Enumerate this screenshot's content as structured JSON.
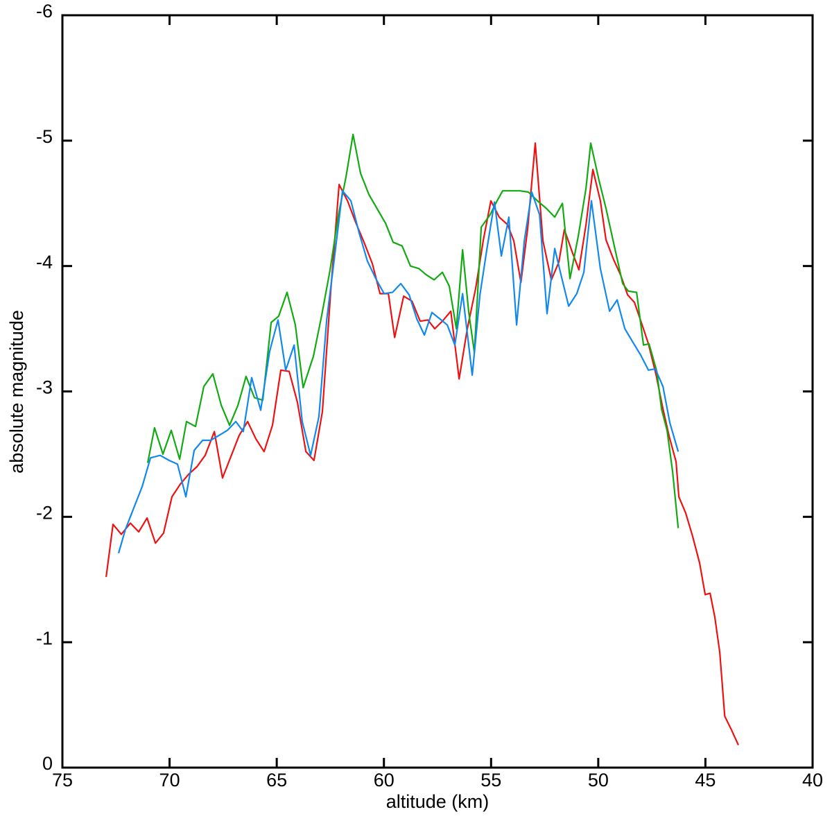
{
  "chart_data": {
    "type": "line",
    "xlabel": "altitude (km)",
    "ylabel": "absolute magnitude",
    "xlim": [
      75,
      40
    ],
    "ylim": [
      0,
      -6
    ],
    "xticks": [
      75,
      70,
      65,
      60,
      55,
      50,
      45,
      40
    ],
    "yticks": [
      0,
      -1,
      -2,
      -3,
      -4,
      -5,
      -6
    ],
    "series": [
      {
        "color": "#ee1111",
        "x": [
          72.96,
          72.64,
          72.25,
          71.83,
          71.44,
          71.05,
          70.66,
          70.28,
          69.89,
          69.5,
          69.11,
          68.72,
          68.34,
          67.91,
          67.53,
          67.14,
          66.75,
          66.36,
          65.97,
          65.59,
          65.2,
          64.81,
          64.42,
          64.03,
          63.64,
          63.26,
          62.87,
          62.48,
          62.09,
          61.7,
          61.32,
          60.93,
          60.54,
          60.18,
          59.79,
          59.5,
          59.08,
          58.69,
          58.31,
          57.95,
          57.63,
          57.27,
          56.88,
          56.49,
          56.11,
          55.72,
          55.36,
          55.01,
          54.62,
          54.23,
          53.94,
          53.61,
          53.29,
          52.94,
          52.58,
          52.19,
          51.84,
          51.58,
          51.19,
          50.9,
          50.57,
          50.25,
          49.9,
          49.64,
          49.28,
          48.96,
          48.63,
          48.31,
          47.95,
          47.66,
          47.31,
          46.98,
          46.69,
          46.37,
          46.24,
          45.92,
          45.59,
          45.27,
          45.01,
          44.78,
          44.56,
          44.33,
          44.1,
          43.78,
          43.46
        ],
        "values": [
          -1.52,
          -1.94,
          -1.86,
          -1.95,
          -1.88,
          -1.99,
          -1.79,
          -1.87,
          -2.16,
          -2.26,
          -2.34,
          -2.4,
          -2.49,
          -2.68,
          -2.31,
          -2.48,
          -2.65,
          -2.76,
          -2.62,
          -2.52,
          -2.73,
          -3.17,
          -3.16,
          -2.91,
          -2.52,
          -2.45,
          -2.84,
          -3.8,
          -4.65,
          -4.52,
          -4.35,
          -4.19,
          -4.02,
          -3.78,
          -3.78,
          -3.43,
          -3.76,
          -3.72,
          -3.56,
          -3.57,
          -3.5,
          -3.56,
          -3.64,
          -3.1,
          -3.5,
          -3.82,
          -4.21,
          -4.52,
          -4.39,
          -4.33,
          -4.2,
          -3.87,
          -4.3,
          -4.98,
          -4.2,
          -3.89,
          -4.03,
          -4.29,
          -4.1,
          -3.97,
          -4.33,
          -4.77,
          -4.52,
          -4.21,
          -4.05,
          -3.93,
          -3.77,
          -3.71,
          -3.53,
          -3.38,
          -3.14,
          -2.86,
          -2.64,
          -2.44,
          -2.16,
          -2.03,
          -1.84,
          -1.63,
          -1.38,
          -1.39,
          -1.2,
          -0.92,
          -0.41,
          -0.3,
          -0.18
        ]
      },
      {
        "color": "#11aa11",
        "x": [
          71.02,
          70.7,
          70.31,
          69.92,
          69.53,
          69.21,
          68.79,
          68.4,
          67.98,
          67.59,
          67.2,
          66.81,
          66.43,
          66.04,
          65.65,
          65.26,
          64.91,
          64.52,
          64.13,
          63.77,
          63.29,
          62.9,
          62.51,
          62.12,
          61.77,
          61.44,
          61.09,
          60.7,
          59.92,
          59.57,
          59.15,
          58.76,
          58.37,
          58.02,
          57.66,
          57.27,
          56.95,
          56.62,
          56.33,
          56.04,
          55.78,
          55.46,
          55.04,
          54.75,
          54.46,
          53.65,
          53.26,
          52.84,
          52.42,
          52.03,
          51.67,
          51.32,
          50.93,
          50.57,
          50.35,
          49.96,
          49.64,
          49.25,
          48.86,
          48.6,
          48.21,
          47.89,
          47.63,
          47.27,
          47.05,
          46.79,
          46.53,
          46.27
        ],
        "values": [
          -2.43,
          -2.71,
          -2.5,
          -2.69,
          -2.46,
          -2.76,
          -2.72,
          -3.04,
          -3.14,
          -2.89,
          -2.73,
          -2.89,
          -3.12,
          -2.95,
          -2.93,
          -3.55,
          -3.6,
          -3.79,
          -3.53,
          -3.03,
          -3.28,
          -3.61,
          -3.97,
          -4.41,
          -4.71,
          -5.05,
          -4.74,
          -4.57,
          -4.34,
          -4.19,
          -4.16,
          -4.0,
          -3.98,
          -3.93,
          -3.89,
          -3.95,
          -3.84,
          -3.5,
          -4.13,
          -3.63,
          -3.31,
          -4.31,
          -4.41,
          -4.51,
          -4.6,
          -4.6,
          -4.59,
          -4.52,
          -4.46,
          -4.39,
          -4.5,
          -3.9,
          -4.24,
          -4.62,
          -4.98,
          -4.68,
          -4.46,
          -4.16,
          -3.86,
          -3.8,
          -3.79,
          -3.37,
          -3.38,
          -3.16,
          -2.86,
          -2.69,
          -2.36,
          -1.91
        ]
      },
      {
        "color": "#1188ee",
        "x": [
          72.38,
          72.06,
          71.67,
          71.28,
          70.89,
          70.44,
          70.02,
          69.63,
          69.24,
          68.85,
          68.46,
          68.08,
          67.69,
          67.3,
          66.91,
          66.56,
          66.17,
          65.75,
          65.33,
          64.94,
          64.58,
          64.19,
          63.81,
          63.42,
          63.03,
          62.67,
          62.32,
          61.93,
          61.54,
          61.15,
          60.77,
          60.38,
          59.99,
          59.6,
          59.21,
          58.82,
          58.47,
          58.11,
          57.76,
          57.4,
          57.04,
          56.69,
          56.33,
          55.88,
          55.52,
          55.2,
          54.84,
          54.52,
          54.17,
          53.81,
          53.45,
          53.1,
          52.74,
          52.39,
          52.03,
          51.71,
          51.38,
          51.0,
          50.67,
          50.32,
          49.9,
          49.47,
          49.12,
          48.76,
          48.41,
          48.02,
          47.66,
          47.34,
          46.98,
          46.66,
          46.27
        ],
        "values": [
          -1.71,
          -1.9,
          -2.07,
          -2.24,
          -2.47,
          -2.49,
          -2.45,
          -2.42,
          -2.16,
          -2.53,
          -2.61,
          -2.61,
          -2.65,
          -2.69,
          -2.76,
          -2.68,
          -3.11,
          -2.85,
          -3.32,
          -3.57,
          -3.17,
          -3.37,
          -2.76,
          -2.49,
          -2.8,
          -3.57,
          -4.05,
          -4.6,
          -4.52,
          -4.26,
          -4.04,
          -3.9,
          -3.78,
          -3.79,
          -3.86,
          -3.77,
          -3.58,
          -3.45,
          -3.63,
          -3.58,
          -3.53,
          -3.37,
          -3.78,
          -3.13,
          -3.77,
          -4.13,
          -4.51,
          -4.08,
          -4.39,
          -3.53,
          -4.2,
          -4.59,
          -4.41,
          -3.62,
          -4.14,
          -3.91,
          -3.68,
          -3.78,
          -3.95,
          -4.52,
          -3.98,
          -3.64,
          -3.73,
          -3.5,
          -3.4,
          -3.29,
          -3.17,
          -3.18,
          -3.04,
          -2.75,
          -2.52
        ]
      }
    ]
  }
}
